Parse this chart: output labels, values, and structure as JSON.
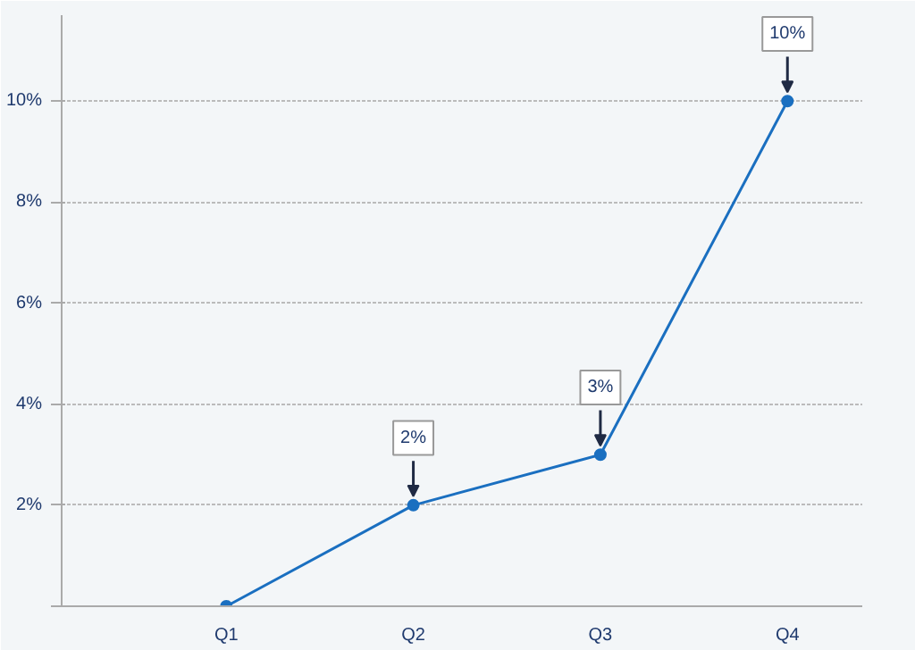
{
  "chart_data": {
    "type": "line",
    "categories": [
      "Q1",
      "Q2",
      "Q3",
      "Q4"
    ],
    "values": [
      0,
      2,
      3,
      10
    ],
    "color": "#1a6fc0",
    "marker": "circle",
    "value_labels": [
      null,
      "2%",
      "3%",
      "10%"
    ],
    "ylim": [
      0,
      11.7
    ],
    "yticks": [
      {
        "value": 0,
        "label": null
      },
      {
        "value": 2,
        "label": "2%"
      },
      {
        "value": 4,
        "label": "4%"
      },
      {
        "value": 6,
        "label": "6%"
      },
      {
        "value": 8,
        "label": "8%"
      },
      {
        "value": 10,
        "label": "10%"
      }
    ],
    "grid": "y"
  }
}
